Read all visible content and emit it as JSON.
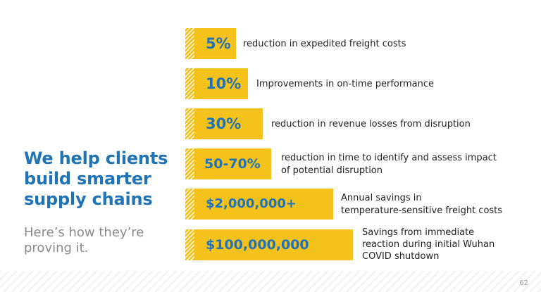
{
  "headline": "We help clients build smarter supply chains",
  "subhead": "Here’s how they’re proving it.",
  "stats": [
    {
      "value": "5%",
      "description": "reduction in expedited freight costs"
    },
    {
      "value": "10%",
      "description": "Improvements in on-time performance"
    },
    {
      "value": "30%",
      "description": "reduction in revenue losses from disruption"
    },
    {
      "value": "50-70%",
      "description_line1": "reduction in time to identify and assess impact",
      "description_line2": "of potential disruption"
    },
    {
      "value": "$2,000,000+",
      "description_line1": "Annual savings in",
      "description_line2": "temperature-sensitive freight costs"
    },
    {
      "value": "$100,000,000",
      "description_line1": "Savings from immediate",
      "description_line2": "reaction during initial Wuhan",
      "description_line3": "COVID shutdown"
    }
  ],
  "footer": {
    "page_number": "62"
  },
  "colors": {
    "accent_blue": "#1f73b7",
    "accent_yellow": "#f5c21b",
    "subhead_gray": "#8a8a8a"
  }
}
